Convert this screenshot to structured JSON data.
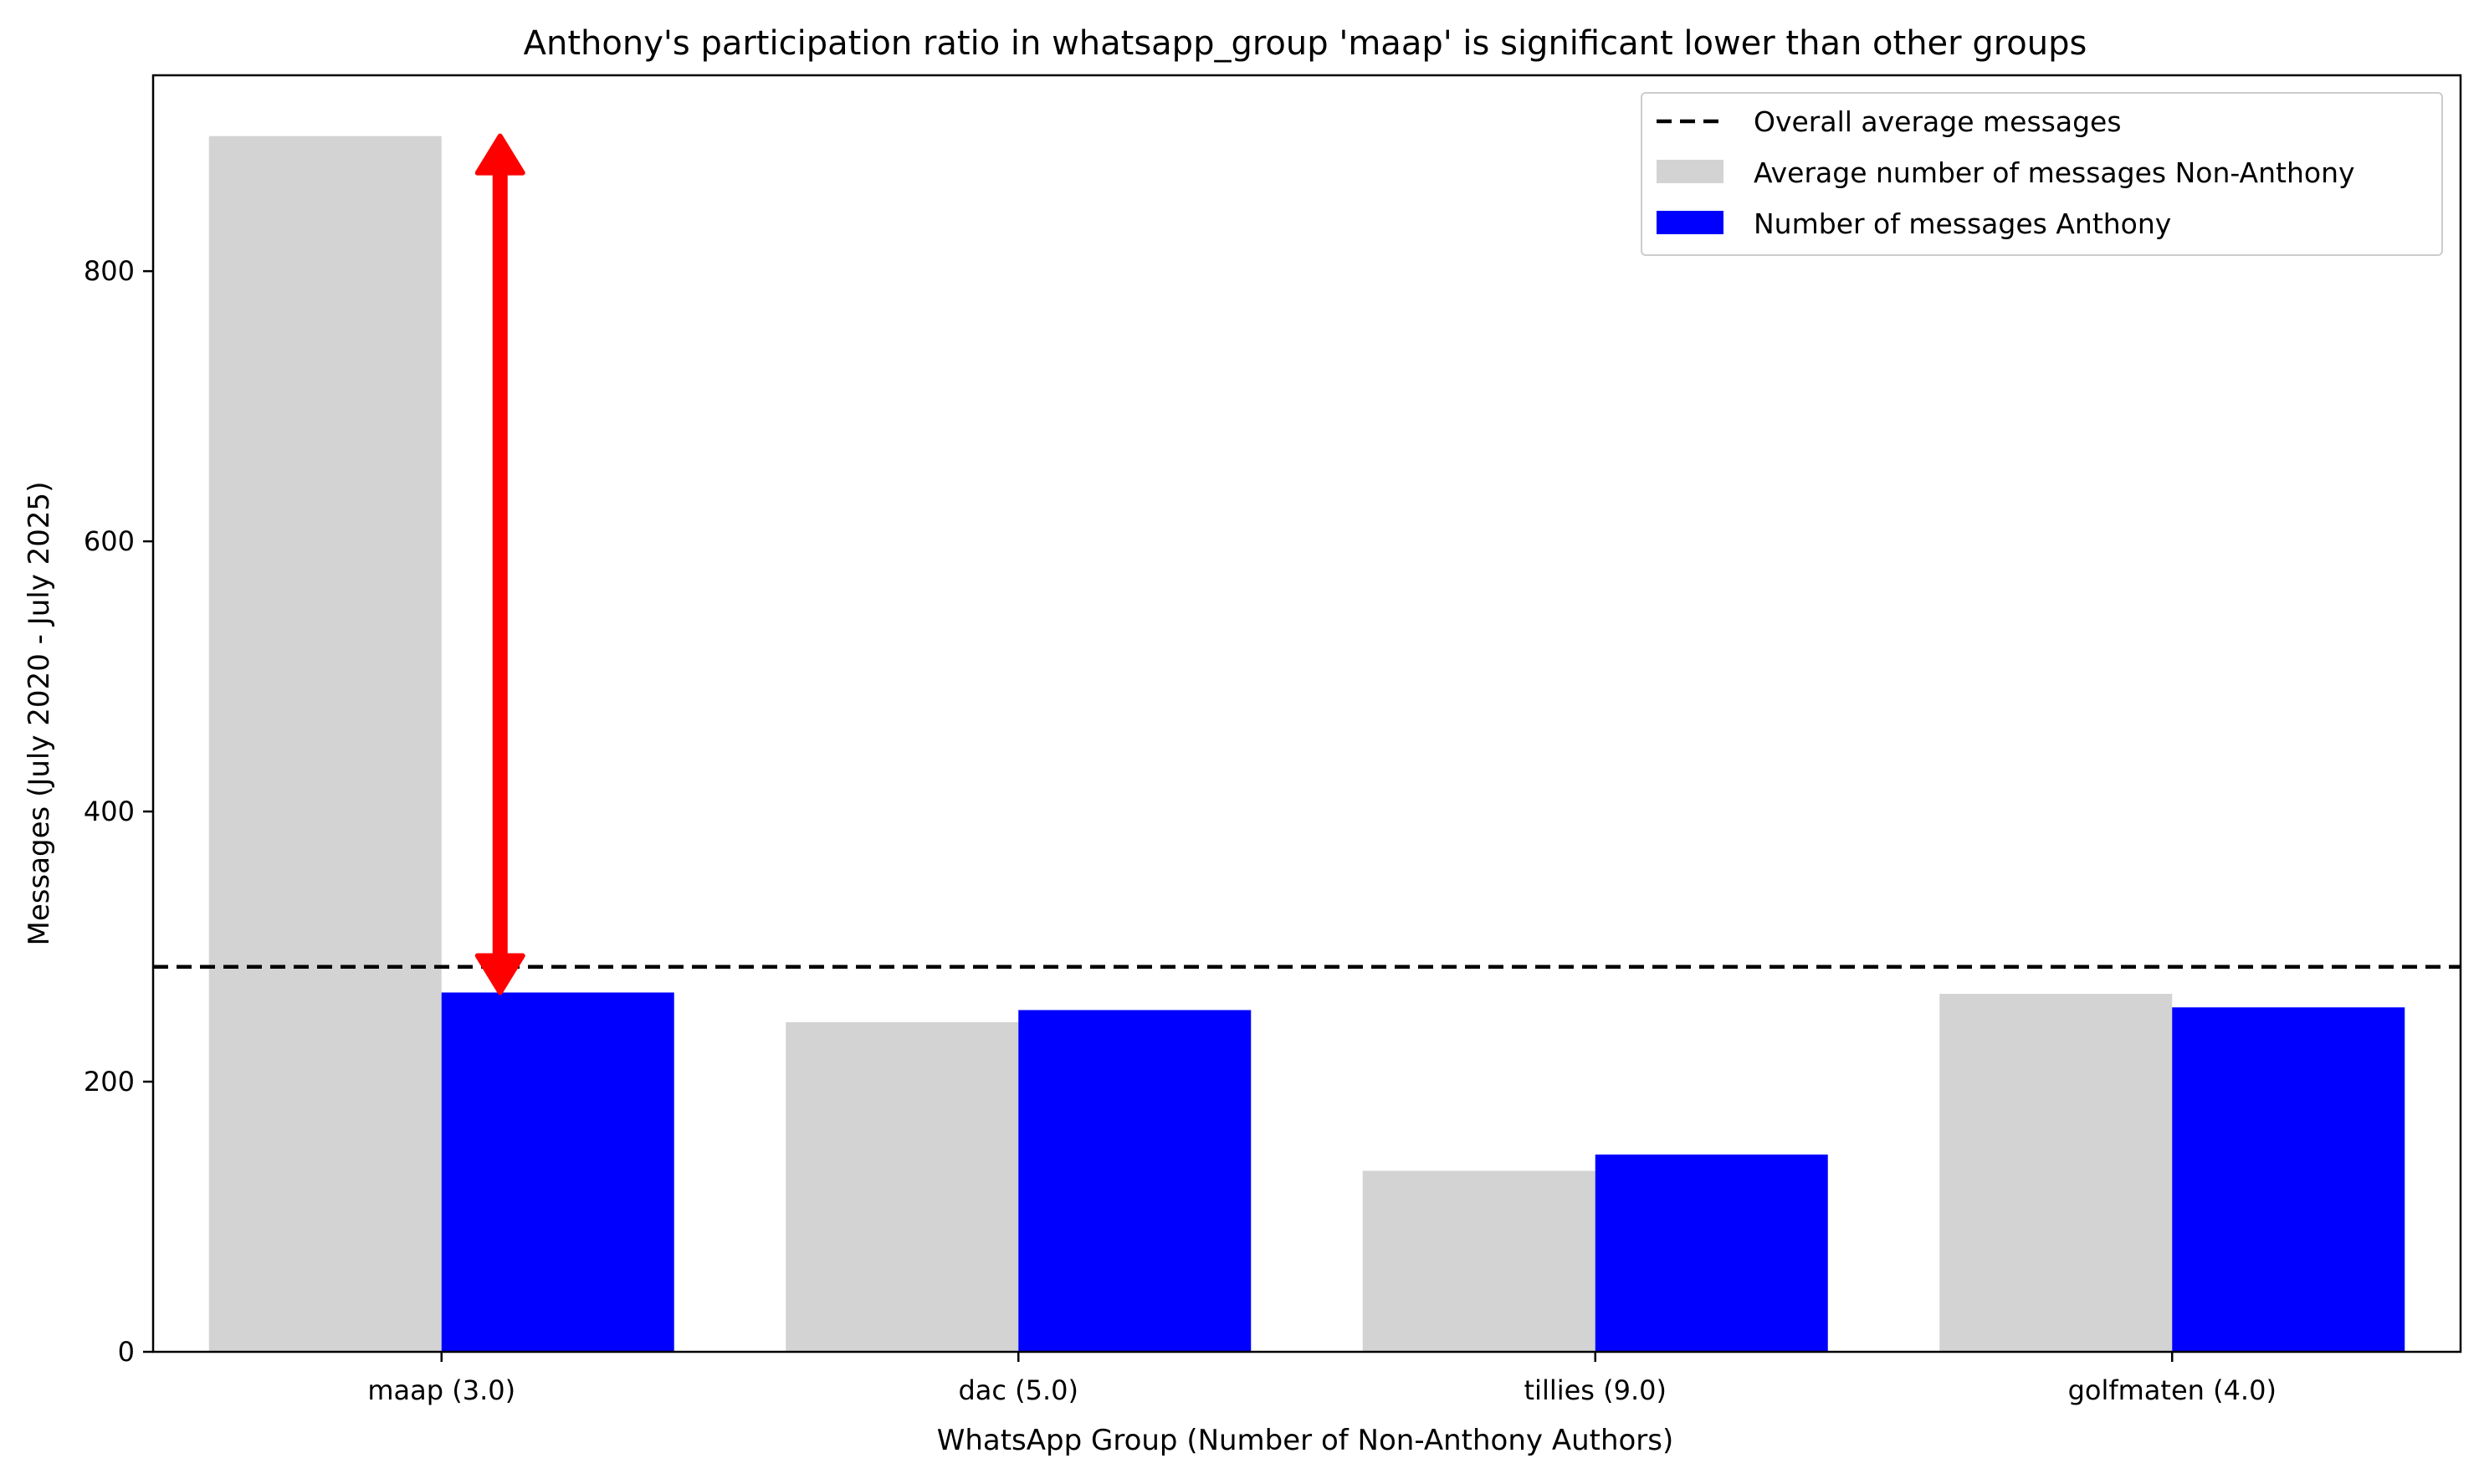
{
  "chart_data": {
    "type": "bar",
    "title": "Anthony's participation ratio in whatsapp_group 'maap' is significant lower than other groups",
    "xlabel": "WhatsApp Group (Number of Non-Anthony Authors)",
    "ylabel": "Messages (July 2020 - July 2025)",
    "categories": [
      "maap (3.0)",
      "dac (5.0)",
      "tillies (9.0)",
      "golfmaten (4.0)"
    ],
    "series": [
      {
        "name": "Average number of messages Non-Anthony",
        "color": "#d3d3d3",
        "values": [
          900,
          244,
          134,
          265
        ]
      },
      {
        "name": "Number of messages Anthony",
        "color": "#0000ff",
        "values": [
          266,
          253,
          146,
          255
        ]
      }
    ],
    "reference_line": {
      "name": "Overall average messages",
      "value": 285,
      "style": "dashed",
      "color": "#000000"
    },
    "annotation": {
      "type": "double-arrow",
      "category": "maap (3.0)",
      "from": 266,
      "to": 900,
      "color": "#ff0000"
    },
    "ylim": [
      0,
      945
    ],
    "yticks": [
      "0",
      "200",
      "400",
      "600",
      "800"
    ],
    "grid": false,
    "legend_position": "top-right"
  }
}
